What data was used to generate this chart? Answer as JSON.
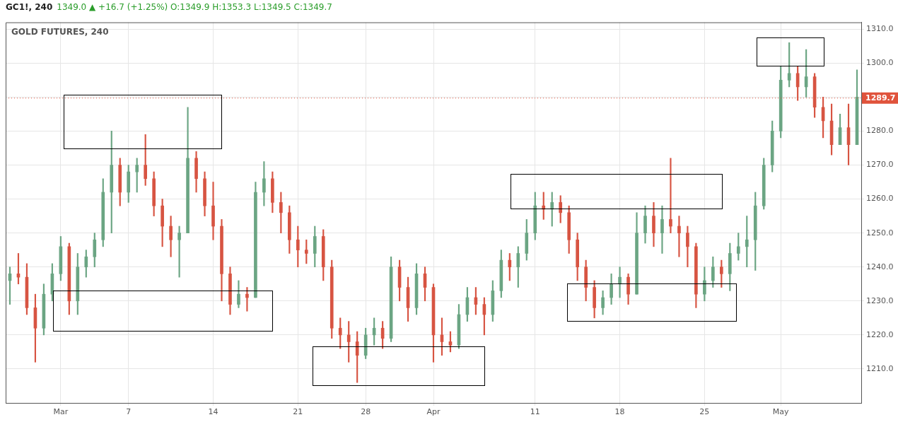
{
  "chart_data": {
    "type": "candlestick",
    "title": "GC1!, 240",
    "subtitle": "1349.0 ▲ +16.7 (+1.25%) O:1349.9 H:1353.3 L:1349.5 C:1349.7",
    "annotations": [
      "GOLD FUTURES, 240"
    ],
    "categories": [
      null,
      null,
      null,
      null,
      null,
      null,
      "Mar",
      null,
      null,
      null,
      null,
      null,
      null,
      null,
      "7",
      null,
      null,
      null,
      null,
      null,
      null,
      null,
      null,
      null,
      "14",
      null,
      null,
      null,
      null,
      null,
      null,
      null,
      null,
      null,
      "21",
      null,
      null,
      null,
      null,
      null,
      null,
      null,
      "28",
      null,
      null,
      null,
      null,
      null,
      null,
      null,
      "Apr",
      null,
      null,
      null,
      null,
      null,
      null,
      null,
      null,
      null,
      null,
      null,
      "11",
      null,
      null,
      null,
      null,
      null,
      null,
      null,
      null,
      null,
      "18",
      null,
      null,
      null,
      null,
      null,
      null,
      null,
      null,
      null,
      "25",
      null,
      null,
      null,
      null,
      null,
      null,
      null,
      null,
      "May",
      null,
      null,
      null,
      null,
      null,
      null,
      null,
      null,
      null
    ],
    "ohlc": [
      [
        1236,
        1240,
        1229,
        1238
      ],
      [
        1238,
        1244,
        1235,
        1237
      ],
      [
        1237,
        1241,
        1226,
        1228
      ],
      [
        1228,
        1232,
        1212,
        1222
      ],
      [
        1222,
        1235,
        1220,
        1232
      ],
      [
        1232,
        1241,
        1230,
        1238
      ],
      [
        1238,
        1249,
        1236,
        1246
      ],
      [
        1246,
        1247,
        1226,
        1230
      ],
      [
        1230,
        1244,
        1226,
        1240
      ],
      [
        1240,
        1245,
        1237,
        1243
      ],
      [
        1243,
        1250,
        1240,
        1248
      ],
      [
        1248,
        1266,
        1246,
        1262
      ],
      [
        1262,
        1280,
        1250,
        1270
      ],
      [
        1270,
        1272,
        1258,
        1262
      ],
      [
        1262,
        1270,
        1259,
        1268
      ],
      [
        1268,
        1272,
        1262,
        1270
      ],
      [
        1270,
        1279,
        1264,
        1266
      ],
      [
        1266,
        1268,
        1255,
        1258
      ],
      [
        1258,
        1260,
        1246,
        1252
      ],
      [
        1252,
        1255,
        1243,
        1248
      ],
      [
        1248,
        1252,
        1237,
        1250
      ],
      [
        1250,
        1287,
        1250,
        1272
      ],
      [
        1272,
        1274,
        1262,
        1266
      ],
      [
        1266,
        1268,
        1255,
        1258
      ],
      [
        1258,
        1265,
        1248,
        1252
      ],
      [
        1252,
        1254,
        1230,
        1238
      ],
      [
        1238,
        1240,
        1226,
        1229
      ],
      [
        1229,
        1236,
        1228,
        1232
      ],
      [
        1232,
        1234,
        1227,
        1231
      ],
      [
        1231,
        1265,
        1231,
        1262
      ],
      [
        1262,
        1271,
        1258,
        1266
      ],
      [
        1266,
        1268,
        1256,
        1259
      ],
      [
        1259,
        1262,
        1250,
        1256
      ],
      [
        1256,
        1258,
        1244,
        1248
      ],
      [
        1248,
        1252,
        1240,
        1245
      ],
      [
        1245,
        1248,
        1241,
        1244
      ],
      [
        1244,
        1252,
        1240,
        1249
      ],
      [
        1249,
        1251,
        1236,
        1240
      ],
      [
        1240,
        1242,
        1219,
        1222
      ],
      [
        1222,
        1225,
        1216,
        1220
      ],
      [
        1220,
        1224,
        1212,
        1218
      ],
      [
        1218,
        1221,
        1206,
        1214
      ],
      [
        1214,
        1222,
        1213,
        1220
      ],
      [
        1220,
        1225,
        1217,
        1222
      ],
      [
        1222,
        1224,
        1216,
        1219
      ],
      [
        1219,
        1243,
        1218,
        1240
      ],
      [
        1240,
        1242,
        1230,
        1234
      ],
      [
        1234,
        1237,
        1224,
        1228
      ],
      [
        1228,
        1241,
        1226,
        1238
      ],
      [
        1238,
        1240,
        1230,
        1234
      ],
      [
        1234,
        1235,
        1212,
        1220
      ],
      [
        1220,
        1225,
        1214,
        1218
      ],
      [
        1218,
        1221,
        1215,
        1217
      ],
      [
        1217,
        1229,
        1216,
        1226
      ],
      [
        1226,
        1234,
        1224,
        1231
      ],
      [
        1231,
        1234,
        1226,
        1229
      ],
      [
        1229,
        1231,
        1220,
        1226
      ],
      [
        1226,
        1236,
        1224,
        1233
      ],
      [
        1233,
        1245,
        1231,
        1242
      ],
      [
        1242,
        1244,
        1236,
        1240
      ],
      [
        1240,
        1246,
        1234,
        1244
      ],
      [
        1244,
        1254,
        1242,
        1250
      ],
      [
        1250,
        1262,
        1248,
        1258
      ],
      [
        1258,
        1262,
        1254,
        1257
      ],
      [
        1257,
        1262,
        1252,
        1259
      ],
      [
        1259,
        1261,
        1253,
        1256
      ],
      [
        1256,
        1258,
        1244,
        1248
      ],
      [
        1248,
        1250,
        1236,
        1240
      ],
      [
        1240,
        1242,
        1230,
        1234
      ],
      [
        1234,
        1236,
        1225,
        1228
      ],
      [
        1228,
        1233,
        1226,
        1231
      ],
      [
        1231,
        1238,
        1229,
        1235
      ],
      [
        1235,
        1240,
        1231,
        1237
      ],
      [
        1237,
        1238,
        1229,
        1232
      ],
      [
        1232,
        1256,
        1232,
        1250
      ],
      [
        1250,
        1258,
        1247,
        1255
      ],
      [
        1255,
        1259,
        1246,
        1250
      ],
      [
        1250,
        1258,
        1244,
        1254
      ],
      [
        1254,
        1272,
        1250,
        1252
      ],
      [
        1252,
        1255,
        1243,
        1250
      ],
      [
        1250,
        1252,
        1240,
        1246
      ],
      [
        1246,
        1247,
        1228,
        1232
      ],
      [
        1232,
        1240,
        1230,
        1236
      ],
      [
        1236,
        1243,
        1234,
        1240
      ],
      [
        1240,
        1242,
        1234,
        1238
      ],
      [
        1238,
        1247,
        1233,
        1244
      ],
      [
        1244,
        1250,
        1242,
        1246
      ],
      [
        1246,
        1255,
        1240,
        1248
      ],
      [
        1248,
        1262,
        1239,
        1258
      ],
      [
        1258,
        1272,
        1257,
        1270
      ],
      [
        1270,
        1283,
        1268,
        1280
      ],
      [
        1280,
        1299,
        1278,
        1295
      ],
      [
        1295,
        1306,
        1293,
        1297
      ],
      [
        1297,
        1299,
        1289,
        1293
      ],
      [
        1293,
        1304,
        1290,
        1296
      ],
      [
        1296,
        1297,
        1284,
        1287
      ],
      [
        1287,
        1290,
        1278,
        1283
      ],
      [
        1283,
        1288,
        1273,
        1276
      ],
      [
        1276,
        1285,
        1276,
        1281
      ],
      [
        1281,
        1288,
        1270,
        1276
      ],
      [
        1276,
        1298,
        1276,
        1290
      ]
    ],
    "colors": [
      "#6ba583",
      "#d75442",
      "#d75442",
      "#d75442",
      "#6ba583",
      "#6ba583",
      "#6ba583",
      "#d75442",
      "#6ba583",
      "#6ba583",
      "#6ba583",
      "#6ba583",
      "#6ba583",
      "#d75442",
      "#6ba583",
      "#6ba583",
      "#d75442",
      "#d75442",
      "#d75442",
      "#d75442",
      "#6ba583",
      "#6ba583",
      "#d75442",
      "#d75442",
      "#d75442",
      "#d75442",
      "#d75442",
      "#6ba583",
      "#d75442",
      "#6ba583",
      "#6ba583",
      "#d75442",
      "#d75442",
      "#d75442",
      "#d75442",
      "#d75442",
      "#6ba583",
      "#d75442",
      "#d75442",
      "#d75442",
      "#d75442",
      "#d75442",
      "#6ba583",
      "#6ba583",
      "#d75442",
      "#6ba583",
      "#d75442",
      "#d75442",
      "#6ba583",
      "#d75442",
      "#d75442",
      "#d75442",
      "#d75442",
      "#6ba583",
      "#6ba583",
      "#d75442",
      "#d75442",
      "#6ba583",
      "#6ba583",
      "#d75442",
      "#6ba583",
      "#6ba583",
      "#6ba583",
      "#d75442",
      "#6ba583",
      "#d75442",
      "#d75442",
      "#d75442",
      "#d75442",
      "#d75442",
      "#6ba583",
      "#6ba583",
      "#6ba583",
      "#d75442",
      "#6ba583",
      "#6ba583",
      "#d75442",
      "#6ba583",
      "#d75442",
      "#d75442",
      "#d75442",
      "#d75442",
      "#6ba583",
      "#6ba583",
      "#d75442",
      "#6ba583",
      "#6ba583",
      "#6ba583",
      "#6ba583",
      "#6ba583",
      "#6ba583",
      "#6ba583",
      "#6ba583",
      "#d75442",
      "#6ba583",
      "#d75442",
      "#d75442",
      "#d75442",
      "#6ba583",
      "#d75442",
      "#6ba583"
    ],
    "ylim": [
      1200,
      1312
    ],
    "yticks": [
      {
        "value": 1210,
        "label": "1210.0"
      },
      {
        "value": 1220,
        "label": "1220.0"
      },
      {
        "value": 1230,
        "label": "1230.0"
      },
      {
        "value": 1240,
        "label": "1240.0"
      },
      {
        "value": 1250,
        "label": "1250.0"
      },
      {
        "value": 1260,
        "label": "1260.0"
      },
      {
        "value": 1270,
        "label": "1270.0"
      },
      {
        "value": 1280,
        "label": "1280.0"
      },
      {
        "value": 1290,
        "label": null
      },
      {
        "value": 1300,
        "label": "1300.0"
      },
      {
        "value": 1310,
        "label": "1310.0"
      }
    ],
    "ref_lines": [
      {
        "axis": "y",
        "value": 1289.7,
        "label": "1289.7",
        "color": "#e0533c"
      }
    ],
    "grid": true
  }
}
